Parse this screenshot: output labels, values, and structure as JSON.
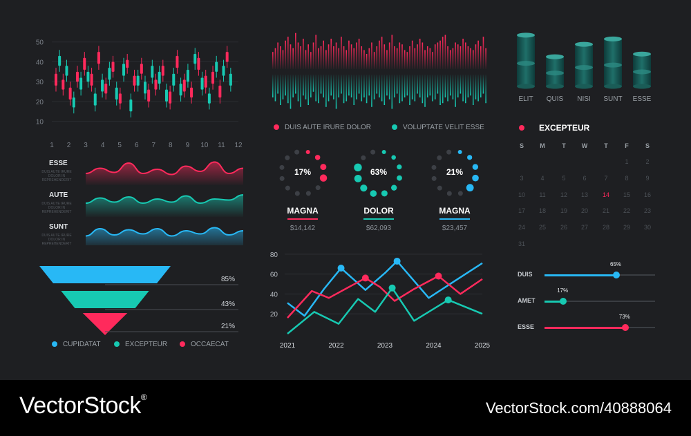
{
  "colors": {
    "background": "#1e1f22",
    "red": "#ff2a5c",
    "teal": "#17c9b2",
    "blue": "#28b8f5",
    "grid": "#34373c"
  },
  "chart_data": [
    {
      "type": "candlestick",
      "x": [
        1,
        2,
        3,
        4,
        5,
        6,
        7,
        8,
        9,
        10,
        11,
        12
      ],
      "xlim": [
        1,
        12
      ],
      "ylim": [
        5,
        52
      ],
      "yticks": [
        10,
        20,
        30,
        40,
        50
      ],
      "series": [
        {
          "color": "red",
          "candles": [
            [
              34,
              28
            ],
            [
              31,
              26
            ],
            [
              27,
              21
            ],
            [
              35,
              30
            ],
            [
              42,
              36
            ],
            [
              34,
              28
            ],
            [
              45,
              39
            ],
            [
              29,
              24
            ],
            [
              40,
              35
            ],
            [
              24,
              19
            ],
            [
              41,
              37
            ],
            [
              33,
              28
            ],
            [
              39,
              34
            ],
            [
              26,
              20
            ],
            [
              31,
              26
            ],
            [
              38,
              33
            ],
            [
              25,
              19
            ],
            [
              43,
              37
            ],
            [
              31,
              25
            ],
            [
              27,
              22
            ],
            [
              42,
              36
            ],
            [
              33,
              27
            ],
            [
              35,
              29
            ],
            [
              28,
              22
            ],
            [
              45,
              40
            ]
          ]
        },
        {
          "color": "teal",
          "candles": [
            [
              43,
              38
            ],
            [
              38,
              33
            ],
            [
              22,
              17
            ],
            [
              32,
              26
            ],
            [
              35,
              30
            ],
            [
              24,
              18
            ],
            [
              31,
              25
            ],
            [
              37,
              31
            ],
            [
              27,
              21
            ],
            [
              39,
              33
            ],
            [
              21,
              15
            ],
            [
              33,
              28
            ],
            [
              30,
              24
            ],
            [
              38,
              32
            ],
            [
              35,
              29
            ],
            [
              26,
              20
            ],
            [
              34,
              28
            ],
            [
              29,
              23
            ],
            [
              36,
              30
            ],
            [
              44,
              39
            ],
            [
              32,
              26
            ],
            [
              24,
              19
            ],
            [
              40,
              35
            ],
            [
              38,
              33
            ],
            [
              34,
              28
            ]
          ]
        }
      ]
    },
    {
      "type": "area",
      "series": [
        {
          "name": "ESSE",
          "color": "red",
          "values": [
            0.3,
            0.55,
            0.35,
            0.8,
            0.3,
            0.5,
            0.25,
            0.65,
            0.4,
            0.85,
            0.3,
            0.55
          ]
        },
        {
          "name": "AUTE",
          "color": "teal",
          "values": [
            0.4,
            0.65,
            0.45,
            0.7,
            0.4,
            0.6,
            0.45,
            0.75,
            0.4,
            0.6,
            0.55,
            0.8
          ]
        },
        {
          "name": "SUNT",
          "color": "blue",
          "values": [
            0.35,
            0.7,
            0.4,
            0.65,
            0.45,
            0.7,
            0.35,
            0.6,
            0.45,
            0.75,
            0.4,
            0.6
          ]
        }
      ]
    },
    {
      "type": "funnel",
      "series": [
        {
          "name": "CUPIDATAT",
          "color": "blue",
          "value": 85,
          "label": "85%"
        },
        {
          "name": "EXCEPTEUR",
          "color": "teal",
          "value": 43,
          "label": "43%"
        },
        {
          "name": "OCCAECAT",
          "color": "red",
          "value": 21,
          "label": "21%"
        }
      ]
    },
    {
      "type": "bar",
      "series": [
        {
          "name": "DUIS AUTE IRURE DOLOR",
          "color": "red",
          "values": [
            0.45,
            0.55,
            0.7,
            0.6,
            0.5,
            0.75,
            0.85,
            0.65,
            0.55,
            0.95,
            0.7,
            0.6,
            0.8,
            0.5,
            0.65,
            0.45,
            0.7,
            0.9,
            0.55,
            0.6,
            0.75,
            0.5,
            0.65,
            0.8,
            0.6,
            0.7,
            0.55,
            0.85,
            0.6,
            0.5,
            0.75,
            0.65,
            0.55,
            0.7,
            0.8,
            0.6,
            0.5,
            0.4,
            0.55,
            0.7,
            0.45,
            0.6,
            0.75,
            0.85,
            0.65,
            0.5,
            0.7,
            0.9,
            0.6,
            0.55,
            0.7,
            0.65,
            0.5,
            0.45,
            0.6,
            0.75,
            0.55,
            0.65,
            0.8,
            0.7,
            0.5,
            0.6,
            0.55,
            0.45,
            0.65,
            0.7,
            0.75,
            0.85,
            0.9,
            0.6,
            0.5,
            0.55,
            0.7,
            0.65,
            0.6,
            0.8,
            0.7,
            0.6,
            0.55,
            0.5,
            0.65,
            0.75,
            0.6,
            0.85,
            0.55
          ]
        },
        {
          "name": "VOLUPTATE VELIT ESSE",
          "color": "teal",
          "values": [
            0.6,
            0.7,
            0.5,
            0.8,
            0.65,
            0.55,
            0.75,
            0.9,
            0.6,
            0.5,
            0.7,
            0.85,
            0.55,
            0.65,
            0.8,
            0.6,
            0.45,
            0.7,
            0.75,
            0.5,
            0.6,
            0.85,
            0.7,
            0.55,
            0.65,
            0.9,
            0.6,
            0.5,
            0.75,
            0.7,
            0.55,
            0.6,
            0.8,
            0.65,
            0.5,
            0.7,
            0.6,
            0.75,
            0.55,
            0.85,
            0.65,
            0.5,
            0.6,
            0.7,
            0.8,
            0.55,
            0.65,
            0.9,
            0.6,
            0.5,
            0.75,
            0.7,
            0.6,
            0.55,
            0.8,
            0.65,
            0.7,
            0.5,
            0.6,
            0.75,
            0.85,
            0.6,
            0.55,
            0.7,
            0.65,
            0.5,
            0.8,
            0.75,
            0.6,
            0.7,
            0.55,
            0.65,
            0.85,
            0.6,
            0.5,
            0.7,
            0.75,
            0.6,
            0.55,
            0.8,
            0.65,
            0.7,
            0.6,
            0.5,
            0.75
          ]
        }
      ]
    },
    {
      "type": "cylinder",
      "categories": [
        "ELIT",
        "QUIS",
        "NISI",
        "SUNT",
        "ESSE"
      ],
      "values": [
        0.95,
        0.55,
        0.78,
        0.88,
        0.6
      ]
    },
    {
      "type": "donut",
      "items": [
        {
          "title": "MAGNA",
          "pct": "17%",
          "value": 17,
          "amount": "$14,142",
          "color": "red"
        },
        {
          "title": "DOLOR",
          "pct": "63%",
          "value": 63,
          "amount": "$62,093",
          "color": "teal"
        },
        {
          "title": "MAGNA",
          "pct": "21%",
          "value": 21,
          "amount": "$23,457",
          "color": "blue"
        }
      ]
    },
    {
      "type": "line",
      "x": [
        2021,
        2021.5,
        2022,
        2022.5,
        2023,
        2023.5,
        2024,
        2024.5,
        2025
      ],
      "xticks": [
        "2021",
        "2022",
        "2023",
        "2024",
        "2025"
      ],
      "xlim": [
        2021,
        2025
      ],
      "ylim": [
        0,
        82
      ],
      "yticks": [
        20,
        40,
        60,
        80
      ],
      "series": [
        {
          "color": "blue",
          "points": [
            [
              2021,
              31
            ],
            [
              2021.35,
              18
            ],
            [
              2021.75,
              45
            ],
            [
              2022.1,
              66
            ],
            [
              2022.6,
              44
            ],
            [
              2023.0,
              61
            ],
            [
              2023.25,
              73
            ],
            [
              2023.9,
              36
            ],
            [
              2024.4,
              52
            ],
            [
              2025,
              71
            ]
          ],
          "markers": [
            [
              2022.1,
              66
            ],
            [
              2023.25,
              73
            ]
          ]
        },
        {
          "color": "red",
          "points": [
            [
              2021,
              16
            ],
            [
              2021.5,
              43
            ],
            [
              2021.85,
              36
            ],
            [
              2022.6,
              56
            ],
            [
              2022.9,
              47
            ],
            [
              2023.2,
              33
            ],
            [
              2023.6,
              45
            ],
            [
              2024.1,
              58
            ],
            [
              2024.55,
              40
            ],
            [
              2025,
              55
            ]
          ],
          "markers": [
            [
              2022.6,
              56
            ],
            [
              2024.1,
              58
            ]
          ]
        },
        {
          "color": "teal",
          "points": [
            [
              2021,
              0
            ],
            [
              2021.55,
              22
            ],
            [
              2022.05,
              10
            ],
            [
              2022.45,
              35
            ],
            [
              2022.8,
              22
            ],
            [
              2023.15,
              46
            ],
            [
              2023.6,
              13
            ],
            [
              2024.3,
              34
            ],
            [
              2025,
              20
            ]
          ],
          "markers": [
            [
              2023.15,
              46
            ],
            [
              2024.3,
              34
            ]
          ]
        }
      ]
    }
  ],
  "wave_labels": [
    {
      "name": "ESSE",
      "sub": "DUIS AUTE IRURE DOLOR IN REPREHENDERIT"
    },
    {
      "name": "AUTE",
      "sub": "DUIS AUTE IRURE DOLOR IN REPREHENDERIT"
    },
    {
      "name": "SUNT",
      "sub": "DUIS AUTE IRURE DOLOR IN REPREHENDERIT"
    }
  ],
  "calendar": {
    "title": "EXCEPTEUR",
    "weekdays": [
      "S",
      "M",
      "T",
      "W",
      "T",
      "F",
      "S"
    ],
    "days": [
      "1",
      "2",
      "3",
      "4",
      "5",
      "6",
      "7",
      "8",
      "9",
      "10",
      "11",
      "12",
      "13",
      "14",
      "15",
      "16",
      "17",
      "18",
      "19",
      "20",
      "21",
      "22",
      "23",
      "24",
      "25",
      "26",
      "27",
      "28",
      "29",
      "30",
      "31"
    ],
    "start_offset": 5,
    "highlight": "14"
  },
  "sliders": [
    {
      "name": "DUIS",
      "pct": "65%",
      "value": 0.65,
      "color": "blue"
    },
    {
      "name": "AMET",
      "pct": "17%",
      "value": 0.17,
      "color": "teal"
    },
    {
      "name": "ESSE",
      "pct": "73%",
      "value": 0.73,
      "color": "red"
    }
  ],
  "footer": {
    "brand": "VectorStock",
    "registered": "®",
    "url": "VectorStock.com/40888064"
  }
}
